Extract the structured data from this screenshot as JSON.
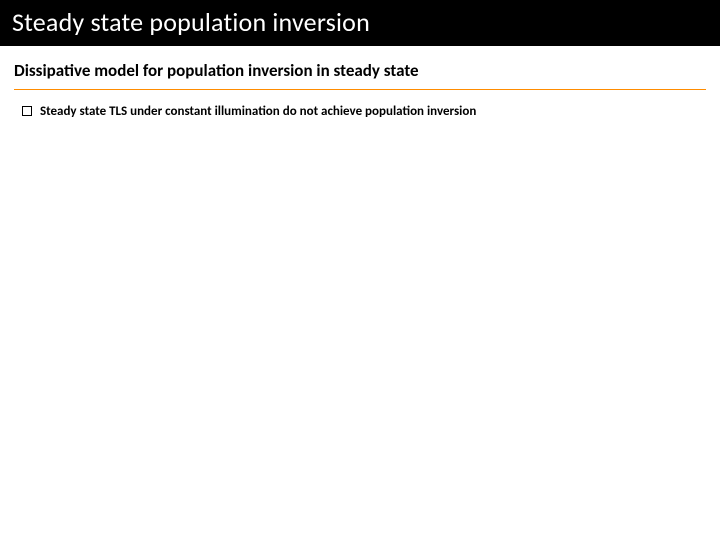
{
  "slide": {
    "title": "Steady state population inversion",
    "title_color": "#ffffff",
    "title_bg": "#000000",
    "title_fontsize": 26,
    "subtitle": "Dissipative model for population inversion in steady state",
    "subtitle_color": "#000000",
    "subtitle_fontsize": 17,
    "subtitle_underline_color": "#ff8c00",
    "bullets": [
      {
        "text": "Steady state TLS under constant illumination do not achieve population inversion"
      }
    ],
    "bullet_fontsize": 13,
    "bullet_text_color": "#000000",
    "bullet_box_border": "#000000",
    "body_bg": "#ffffff"
  }
}
